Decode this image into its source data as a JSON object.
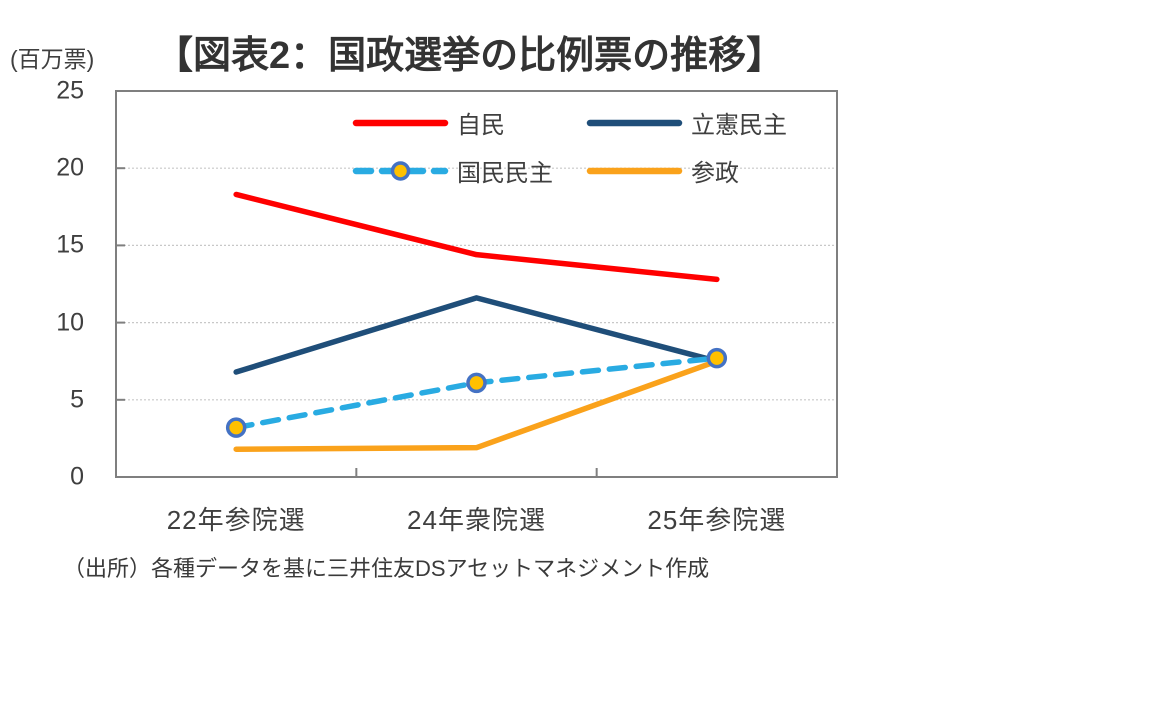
{
  "chart_data": {
    "type": "line",
    "title": "【図表2：国政選挙の比例票の推移】",
    "unit_label": "(百万票)",
    "source": "（出所）各種データを基に三井住友DSアセットマネジメント作成",
    "categories": [
      "22年参院選",
      "24年衆院選",
      "25年参院選"
    ],
    "series": [
      {
        "name": "自民",
        "values": [
          18.3,
          14.4,
          12.8
        ],
        "color": "#FF0000",
        "style": "solid",
        "marker": false
      },
      {
        "name": "立憲民主",
        "values": [
          6.8,
          11.6,
          7.5
        ],
        "color": "#1F4E79",
        "style": "solid",
        "marker": false
      },
      {
        "name": "国民民主",
        "values": [
          3.2,
          6.1,
          7.7
        ],
        "color": "#29ABE2",
        "style": "dashed",
        "marker": true,
        "marker_fill": "#FFC000",
        "marker_stroke": "#4472C4"
      },
      {
        "name": "参政",
        "values": [
          1.8,
          1.9,
          7.5
        ],
        "color": "#FAA21B",
        "style": "solid",
        "marker": false
      }
    ],
    "ylim": [
      0,
      25
    ],
    "yticks": [
      0,
      5,
      10,
      15,
      20,
      25
    ],
    "grid": true,
    "legend_position": "top-inside",
    "colors": {
      "frame": "#7F7F7F",
      "gridline": "#C8C8C8",
      "text": "#3f3f3f"
    }
  }
}
